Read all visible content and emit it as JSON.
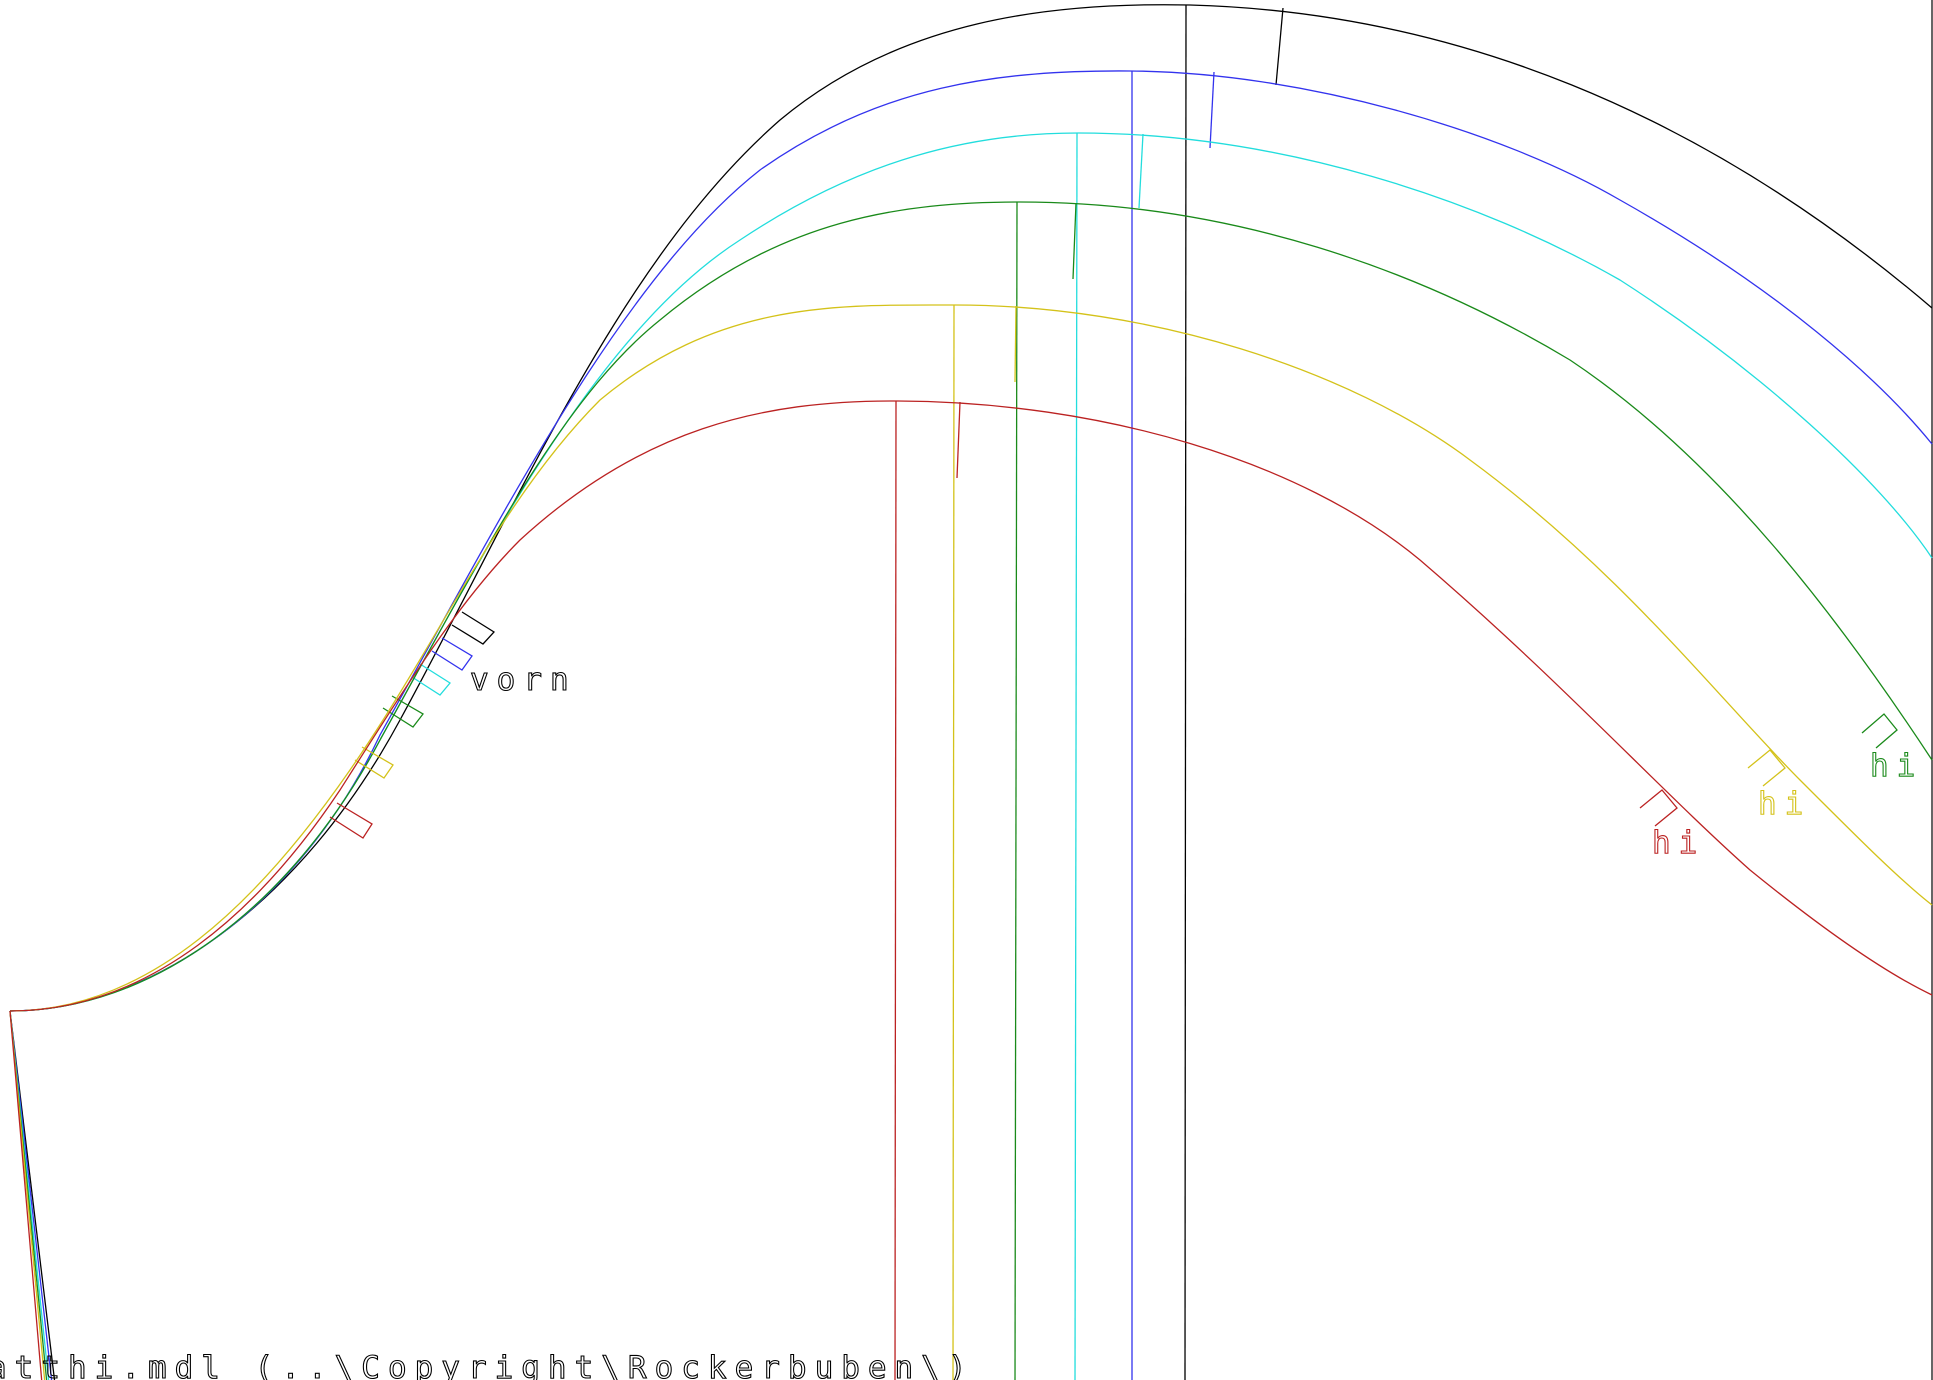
{
  "labels": {
    "front": "vorn",
    "back": "hi",
    "footer": "atthi.mdl (..\\Copyright\\Rockerbuben\\)"
  },
  "colors": {
    "size_1": "#000000",
    "size_2": "#3333ee",
    "size_3": "#22dddd",
    "size_4": "#1a8a1a",
    "size_5": "#d4c21a",
    "size_6": "#bb2222",
    "frame": "#000000",
    "background": "#ffffff"
  }
}
